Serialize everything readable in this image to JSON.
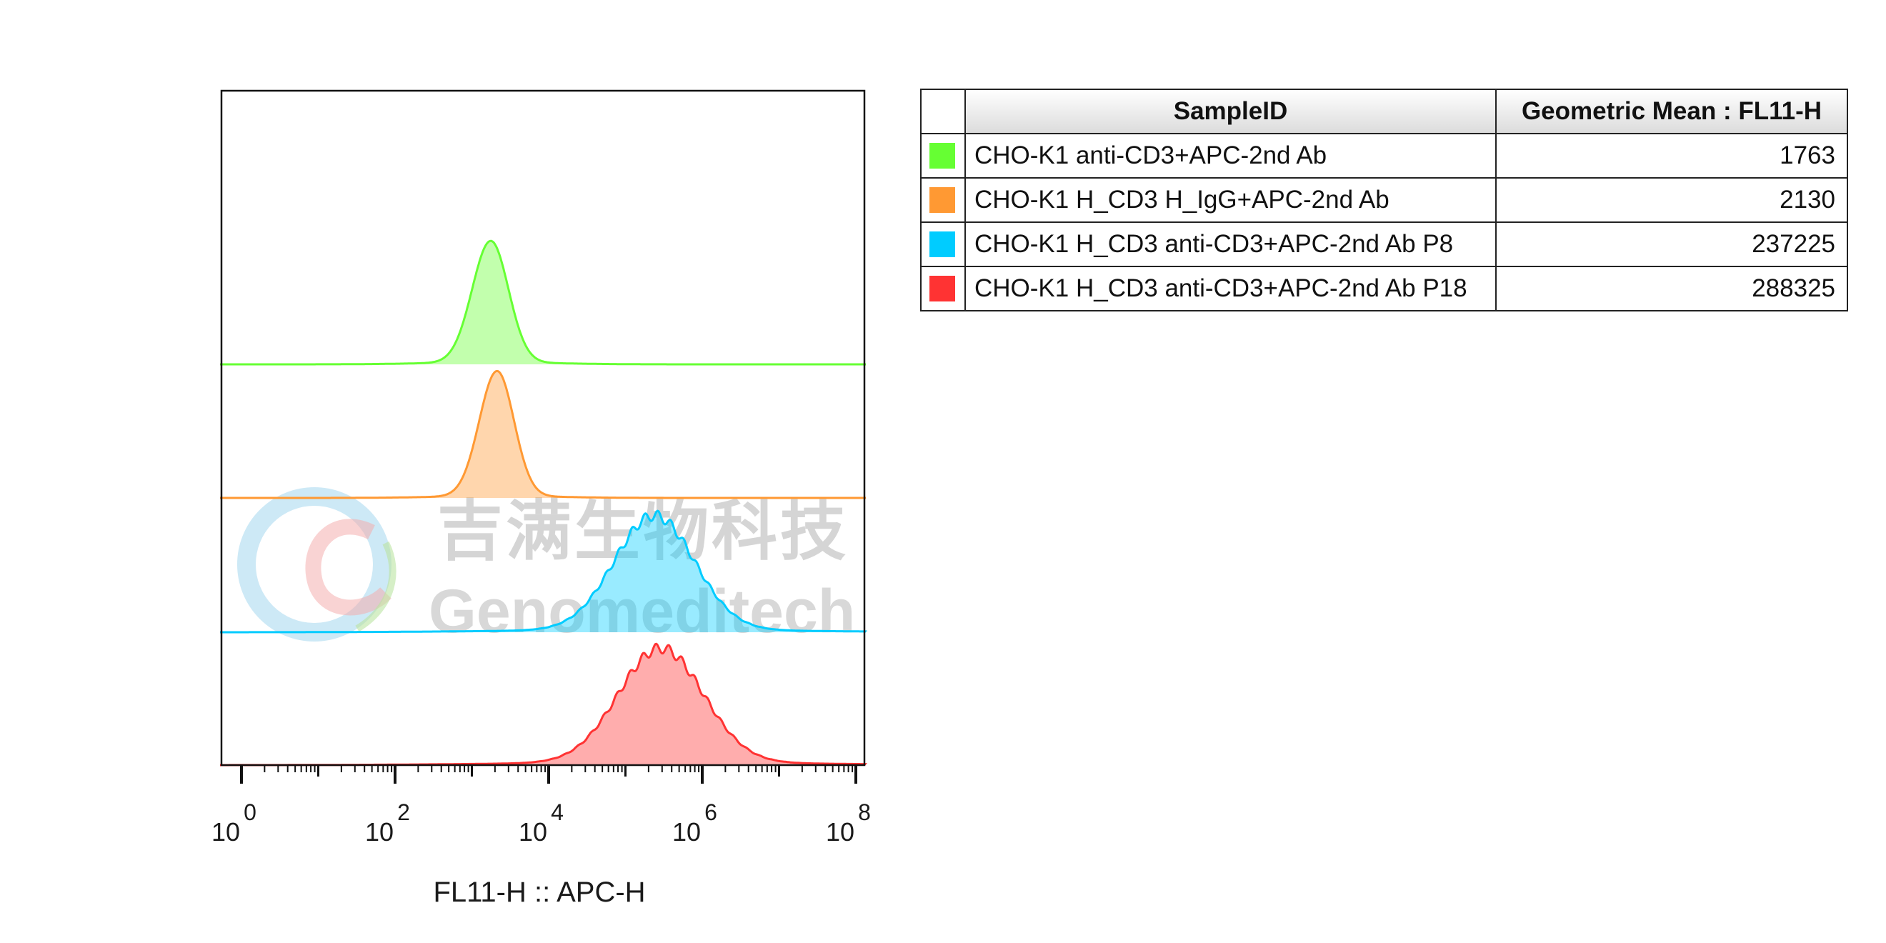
{
  "chart_data": {
    "type": "area",
    "subtype": "staggered histogram overlay",
    "xlabel": "FL11-H :: APC-H",
    "x_scale": "log",
    "xlim": [
      1,
      100000000
    ],
    "x_ticks": [
      {
        "base": "10",
        "exp": "0"
      },
      {
        "base": "10",
        "exp": "2"
      },
      {
        "base": "10",
        "exp": "4"
      },
      {
        "base": "10",
        "exp": "6"
      },
      {
        "base": "10",
        "exp": "8"
      }
    ],
    "series": [
      {
        "name": "CHO-K1 anti-CD3+APC-2nd Ab",
        "color": "#66ff33",
        "peak_x": 1763,
        "width_decades": 0.23,
        "skew": 1.05,
        "tail": 0.55
      },
      {
        "name": "CHO-K1 H_CD3 H_IgG+APC-2nd Ab",
        "color": "#ff9933",
        "peak_x": 2130,
        "width_decades": 0.22,
        "skew": 1.05,
        "tail": 0.5
      },
      {
        "name": "CHO-K1 H_CD3 anti-CD3+APC-2nd Ab P8",
        "color": "#00ccff",
        "peak_x": 237225,
        "width_decades": 0.52,
        "skew": 1.0,
        "tail": 0.7
      },
      {
        "name": "CHO-K1 H_CD3 anti-CD3+APC-2nd Ab P18",
        "color": "#ff3333",
        "peak_x": 288325,
        "width_decades": 0.55,
        "skew": 1.0,
        "tail": 0.75
      }
    ],
    "legend_position": "right"
  },
  "table": {
    "headers": {
      "sample": "SampleID",
      "value": "Geometric Mean : FL11-H"
    },
    "rows": [
      {
        "color": "#66ff33",
        "sample": "CHO-K1 anti-CD3+APC-2nd Ab",
        "value": "1763"
      },
      {
        "color": "#ff9933",
        "sample": "CHO-K1 H_CD3 H_IgG+APC-2nd Ab",
        "value": "2130"
      },
      {
        "color": "#00ccff",
        "sample": "CHO-K1 H_CD3 anti-CD3+APC-2nd Ab P8",
        "value": "237225"
      },
      {
        "color": "#ff3333",
        "sample": "CHO-K1 H_CD3 anti-CD3+APC-2nd Ab P18",
        "value": "288325"
      }
    ]
  },
  "watermark": {
    "text_cn": "吉满生物科技",
    "text_en": "Genomeditech"
  }
}
